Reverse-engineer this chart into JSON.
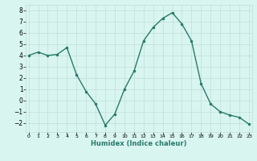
{
  "x": [
    0,
    1,
    2,
    3,
    4,
    5,
    6,
    7,
    8,
    9,
    10,
    11,
    12,
    13,
    14,
    15,
    16,
    17,
    18,
    19,
    20,
    21,
    22,
    23
  ],
  "y": [
    4.0,
    4.3,
    4.0,
    4.1,
    4.7,
    2.3,
    0.8,
    -0.3,
    -2.2,
    -1.2,
    1.0,
    2.6,
    5.3,
    6.5,
    7.3,
    7.8,
    6.8,
    5.3,
    1.5,
    -0.3,
    -1.0,
    -1.3,
    -1.5,
    -2.1
  ],
  "xlabel": "Humidex (Indice chaleur)",
  "ylim": [
    -2.8,
    8.5
  ],
  "xlim": [
    -0.3,
    23.3
  ],
  "yticks": [
    -2,
    -1,
    0,
    1,
    2,
    3,
    4,
    5,
    6,
    7,
    8
  ],
  "xticks": [
    0,
    1,
    2,
    3,
    4,
    5,
    6,
    7,
    8,
    9,
    10,
    11,
    12,
    13,
    14,
    15,
    16,
    17,
    18,
    19,
    20,
    21,
    22,
    23
  ],
  "line_color": "#2a7a6a",
  "bg_color": "#d8f5f0",
  "grid_color": "#c0ddd8",
  "marker": ".",
  "marker_size": 3,
  "line_width": 1.0,
  "xlabel_fontsize": 6.0,
  "xtick_fontsize": 4.5,
  "ytick_fontsize": 5.5
}
